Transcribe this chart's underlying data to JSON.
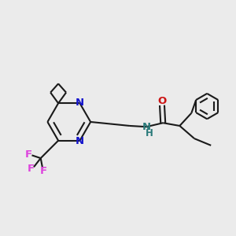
{
  "bg_color": "#ebebeb",
  "line_color": "#1a1a1a",
  "n_color": "#1414cc",
  "o_color": "#cc1414",
  "f_color": "#dd44dd",
  "nh_color": "#2a7a7a",
  "bond_lw": 1.5,
  "font_size": 9.5,
  "fig_size": [
    3.0,
    3.0
  ],
  "dpi": 100,
  "xlim": [
    0,
    12
  ],
  "ylim": [
    0,
    12
  ]
}
